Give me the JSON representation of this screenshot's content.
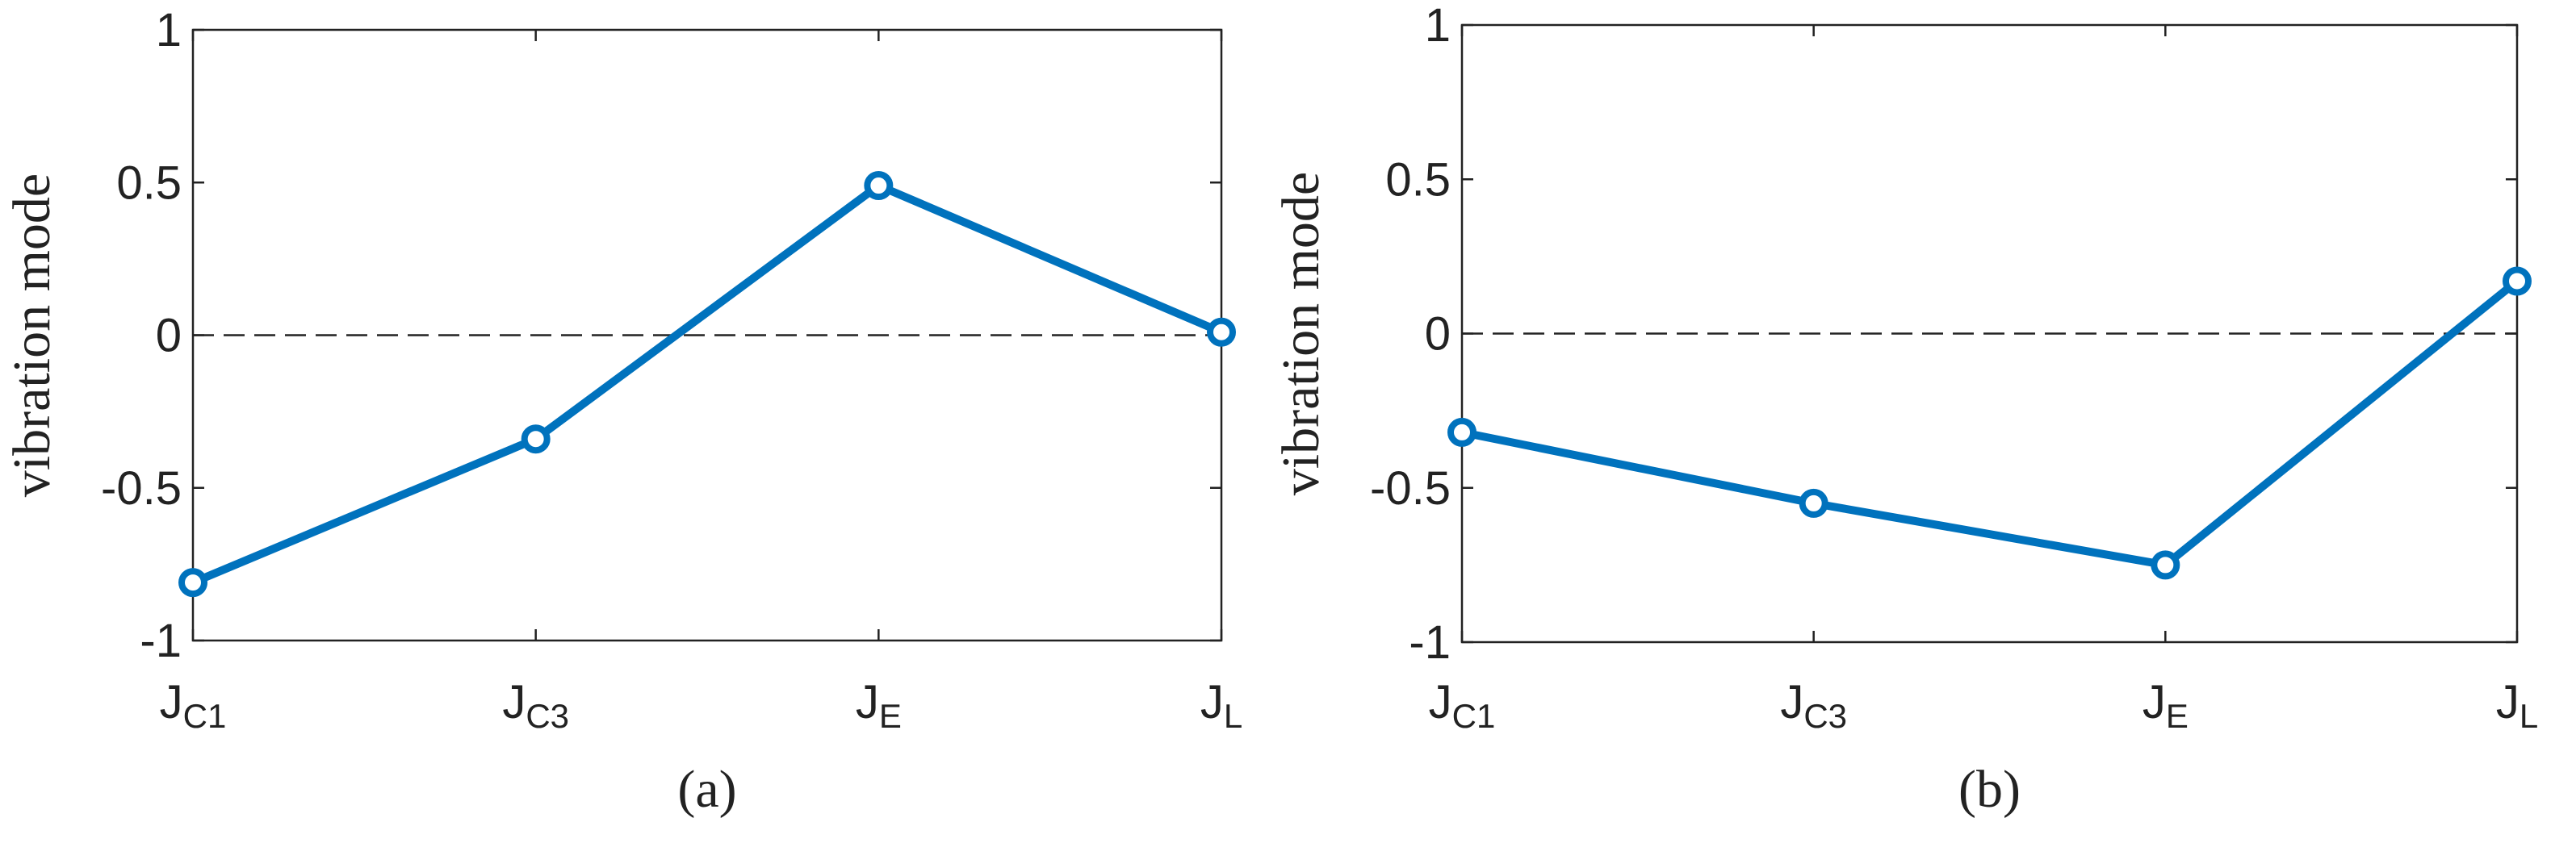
{
  "chart_data": [
    {
      "type": "line",
      "label": "(a)",
      "ylabel": "vibration mode",
      "categories": [
        "JC1",
        "JC3",
        "JE",
        "JL"
      ],
      "series": [
        {
          "color": "#0072bd",
          "values": [
            -0.81,
            -0.34,
            0.49,
            0.01
          ]
        }
      ],
      "ylim": [
        -1,
        1
      ],
      "yticks": [
        -1,
        -0.5,
        0,
        0.5,
        1
      ],
      "reference_line": 0
    },
    {
      "type": "line",
      "label": "(b)",
      "ylabel": "vibration mode",
      "categories": [
        "JC1",
        "JC3",
        "JE",
        "JL"
      ],
      "series": [
        {
          "color": "#0072bd",
          "values": [
            -0.32,
            -0.55,
            -0.75,
            0.17
          ]
        }
      ],
      "ylim": [
        -1,
        1
      ],
      "yticks": [
        -1,
        -0.5,
        0,
        0.5,
        1
      ],
      "reference_line": 0
    }
  ]
}
